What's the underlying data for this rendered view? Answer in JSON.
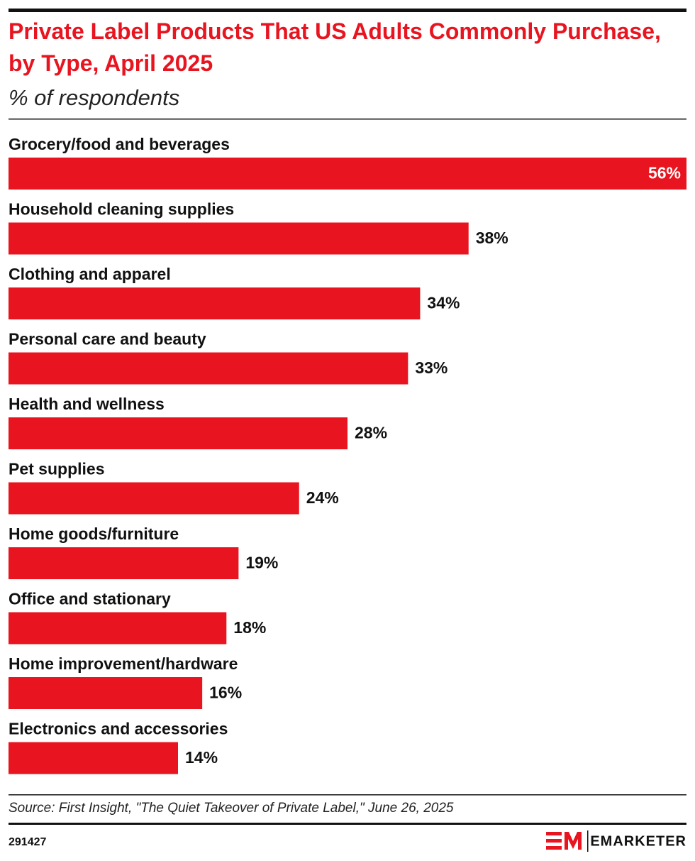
{
  "chart_data": {
    "type": "bar",
    "orientation": "horizontal",
    "title": "Private Label Products That US Adults Commonly Purchase, by Type, April 2025",
    "subtitle": "% of respondents",
    "categories": [
      "Grocery/food and beverages",
      "Household cleaning supplies",
      "Clothing and apparel",
      "Personal care and beauty",
      "Health and wellness",
      "Pet supplies",
      "Home goods/furniture",
      "Office and stationary",
      "Home improvement/hardware",
      "Electronics and accessories"
    ],
    "values": [
      56,
      38,
      34,
      33,
      28,
      24,
      19,
      18,
      16,
      14
    ],
    "value_labels": [
      "56%",
      "38%",
      "34%",
      "33%",
      "28%",
      "24%",
      "19%",
      "18%",
      "16%",
      "14%"
    ],
    "color": "#e8141f",
    "source": "Source: First Insight, \"The Quiet Takeover of Private Label,\" June 26, 2025",
    "chart_id": "291427",
    "brand": "EMARKETER"
  }
}
